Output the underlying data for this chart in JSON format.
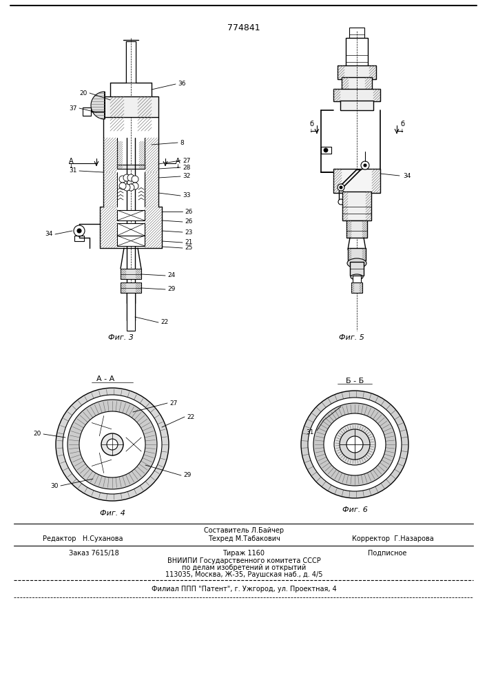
{
  "patent_number": "774841",
  "fig3_label": "Фиг. 3",
  "fig4_label": "Фиг. 4",
  "fig5_label": "Фиг. 5",
  "fig6_label": "Фиг. 6",
  "section_aa": "А - А",
  "section_bb": "Б - Б",
  "footer_composer": "Составитель Л.Байчер",
  "footer_editor": "Редактор   Н.Суханова",
  "footer_techred": "Техред М.Табакович",
  "footer_corrector": "Корректор  Г.Назарова",
  "footer_order": "Заказ 7615/18",
  "footer_tirazh": "Тираж 1160",
  "footer_podpisnoe": "Подписное",
  "footer_vniiipi": "ВНИИПИ Государственного комитета СССР",
  "footer_po": "по делам изобретений и открытий",
  "footer_address": "113035, Москва, Ж-35, Раушская наб., д. 4/5",
  "footer_filial": "Филиал ППП \"Патент\", г. Ужгород, ул. Проектная, 4",
  "bg_color": "#ffffff"
}
